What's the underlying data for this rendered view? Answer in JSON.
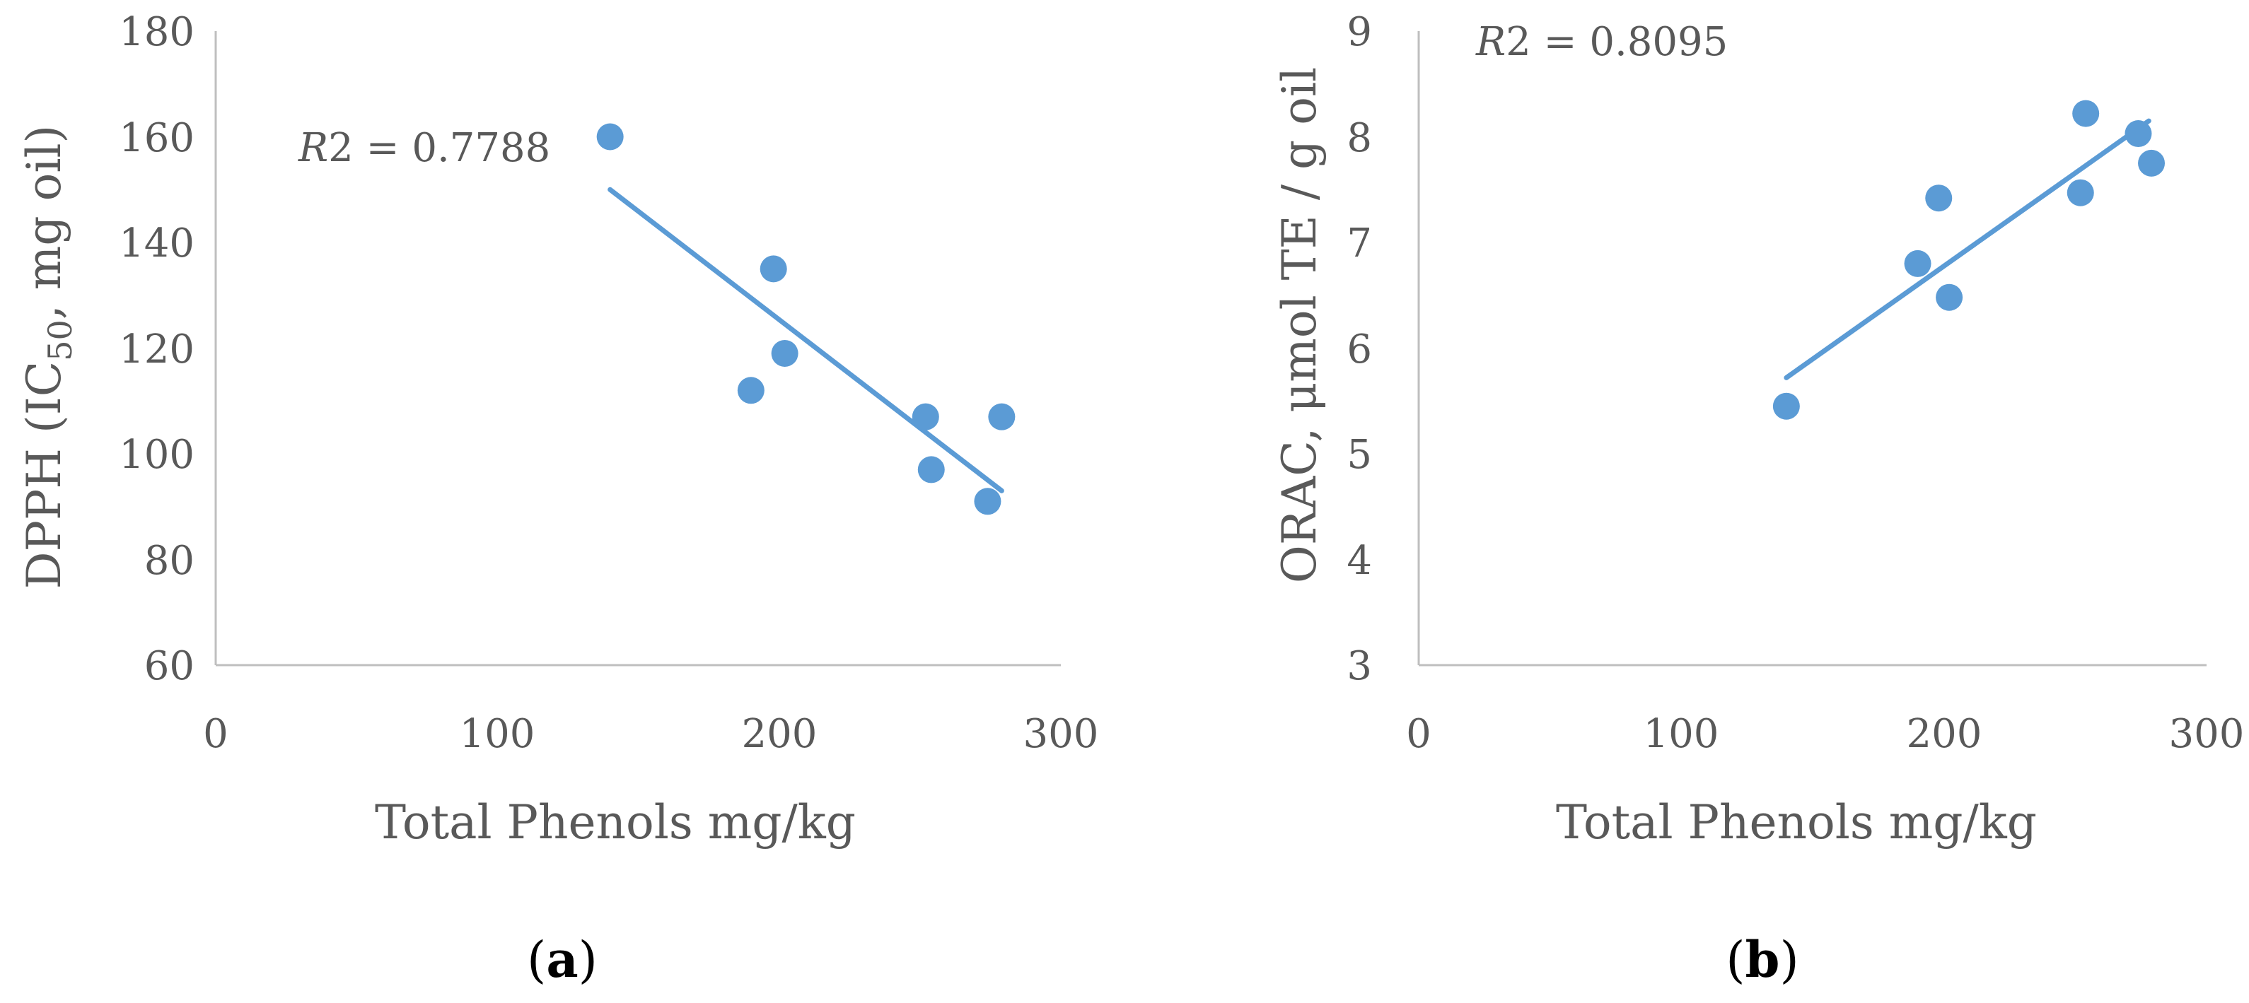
{
  "chart_data": [
    {
      "type": "scatter",
      "panel_label": "a",
      "xlabel": "Total Phenols mg/kg",
      "ylabel_main": "DPPH (IC",
      "ylabel_sub": "50",
      "ylabel_tail": ", mg oil)",
      "xlim": [
        0,
        300
      ],
      "ylim": [
        60,
        180
      ],
      "xticks": [
        0,
        100,
        200,
        300
      ],
      "yticks": [
        60,
        80,
        100,
        120,
        140,
        160,
        180
      ],
      "series": [
        {
          "name": "DPPH",
          "color": "#5b9bd5",
          "points": [
            {
              "x": 140,
              "y": 160
            },
            {
              "x": 190,
              "y": 112
            },
            {
              "x": 198,
              "y": 135
            },
            {
              "x": 202,
              "y": 119
            },
            {
              "x": 252,
              "y": 107
            },
            {
              "x": 254,
              "y": 97
            },
            {
              "x": 274,
              "y": 91
            },
            {
              "x": 279,
              "y": 107
            }
          ]
        }
      ],
      "trendline": {
        "x": [
          140,
          279
        ],
        "y": [
          150,
          93
        ]
      },
      "annotation": {
        "prefix": "R",
        "sup": "2",
        "text": " = 0.7788"
      }
    },
    {
      "type": "scatter",
      "panel_label": "b",
      "xlabel": "Total Phenols mg/kg",
      "ylabel_main": "ORAC, μmol TE / g oil",
      "xlim": [
        0,
        300
      ],
      "ylim": [
        3,
        9
      ],
      "xticks": [
        0,
        100,
        200,
        300
      ],
      "yticks": [
        3,
        4,
        5,
        6,
        7,
        8,
        9
      ],
      "series": [
        {
          "name": "ORAC",
          "color": "#5b9bd5",
          "points": [
            {
              "x": 140,
              "y": 5.45
            },
            {
              "x": 190,
              "y": 6.8
            },
            {
              "x": 198,
              "y": 7.42
            },
            {
              "x": 202,
              "y": 6.48
            },
            {
              "x": 252,
              "y": 7.47
            },
            {
              "x": 254,
              "y": 8.22
            },
            {
              "x": 274,
              "y": 8.03
            },
            {
              "x": 279,
              "y": 7.75
            }
          ]
        }
      ],
      "trendline": {
        "x": [
          140,
          278
        ],
        "y": [
          5.72,
          8.15
        ]
      },
      "annotation": {
        "prefix": "R",
        "sup": "2",
        "text": " = 0.8095"
      }
    }
  ]
}
